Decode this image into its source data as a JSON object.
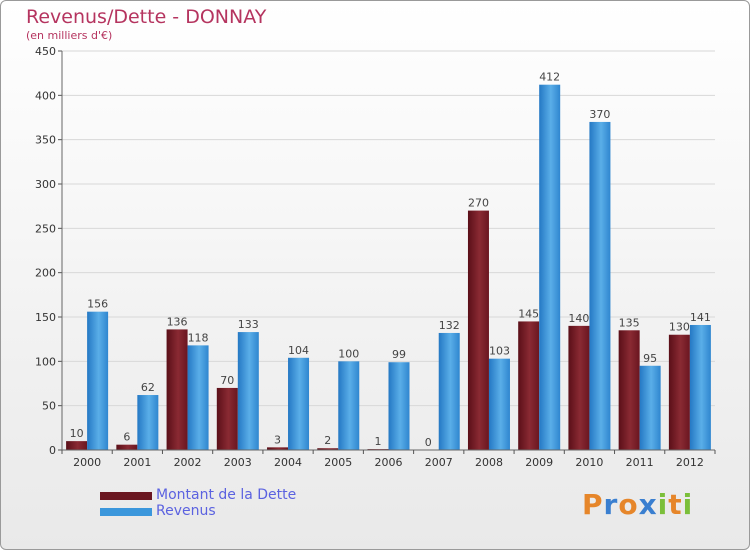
{
  "title": "Revenus/Dette - DONNAY",
  "subtitle": "(en milliers d'€)",
  "legend": {
    "debt_label": "Montant de la Dette",
    "revenue_label": "Revenus"
  },
  "logo": {
    "letters": [
      "P",
      "r",
      "o",
      "x",
      "i",
      "t",
      "i"
    ],
    "colors": [
      "#e6862a",
      "#3a7fd0",
      "#e6862a",
      "#3a7fd0",
      "#7bbf3a",
      "#e6862a",
      "#7bbf3a"
    ]
  },
  "colors": {
    "debt": "#7a1c26",
    "revenue": "#3b97dc",
    "grid": "#d8d8d8",
    "axis_text": "#333333",
    "label_text": "#444444"
  },
  "chart_data": {
    "type": "bar",
    "title": "Revenus/Dette - DONNAY",
    "subtitle": "(en milliers d'€)",
    "categories": [
      "2000",
      "2001",
      "2002",
      "2003",
      "2004",
      "2005",
      "2006",
      "2007",
      "2008",
      "2009",
      "2010",
      "2011",
      "2012"
    ],
    "series": [
      {
        "name": "Montant de la Dette",
        "values": [
          10,
          6,
          136,
          70,
          3,
          2,
          1,
          0,
          270,
          145,
          140,
          135,
          130
        ]
      },
      {
        "name": "Revenus",
        "values": [
          156,
          62,
          118,
          133,
          104,
          100,
          99,
          132,
          103,
          412,
          370,
          95,
          141
        ]
      }
    ],
    "ylim": [
      0,
      450
    ],
    "yticks": [
      0,
      50,
      100,
      150,
      200,
      250,
      300,
      350,
      400,
      450
    ],
    "grid": true,
    "legend_position": "bottom-left"
  }
}
